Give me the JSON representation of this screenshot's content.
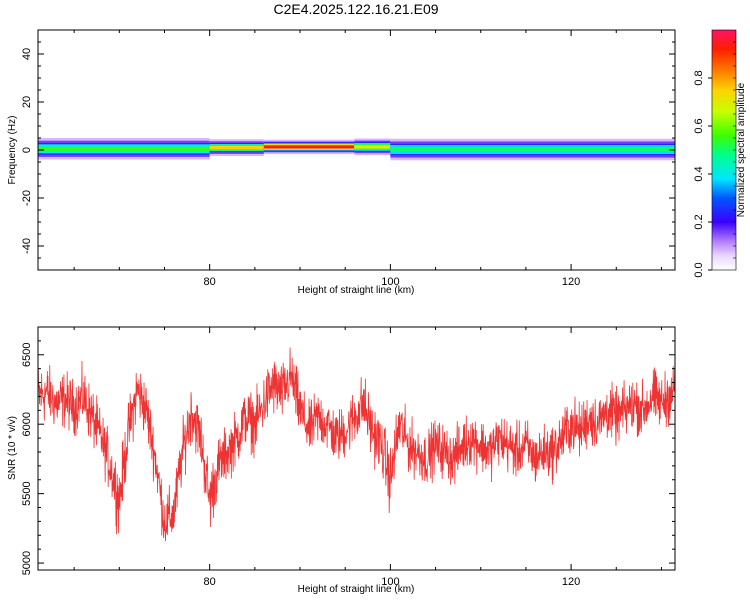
{
  "chart_data": [
    {
      "type": "heatmap",
      "title": "C2E4.2025.122.16.21.E09",
      "xlabel": "Height of straight line (km)",
      "ylabel": "Frequency (Hz)",
      "xlim": [
        61,
        131.5
      ],
      "ylim": [
        -50,
        50
      ],
      "xticks": [
        80,
        100,
        120
      ],
      "yticks": [
        40,
        20,
        0,
        -20,
        -40
      ],
      "xtick_labels": [
        "80",
        "100",
        "120"
      ],
      "ytick_labels": [
        "40",
        "20",
        "0",
        "-20",
        "-40"
      ],
      "colorbar": {
        "label": "Normalized spectral amplitude",
        "range": [
          0,
          1
        ],
        "ticks": [
          0.0,
          0.2,
          0.4,
          0.6,
          0.8
        ],
        "tick_labels": [
          "0.0",
          "0.2",
          "0.4",
          "0.6",
          "0.8"
        ]
      },
      "band": {
        "segments": [
          {
            "x_start": 61,
            "x_end": 80,
            "center_hz": 0.5,
            "core_halfwidth_hz": 1.5,
            "halo_halfwidth_hz": 4.5,
            "peak_amplitude": 0.55
          },
          {
            "x_start": 80,
            "x_end": 86,
            "center_hz": 1.0,
            "core_halfwidth_hz": 1.2,
            "halo_halfwidth_hz": 3.5,
            "peak_amplitude": 0.75
          },
          {
            "x_start": 86,
            "x_end": 96,
            "center_hz": 1.3,
            "core_halfwidth_hz": 1.2,
            "halo_halfwidth_hz": 3.0,
            "peak_amplitude": 0.95
          },
          {
            "x_start": 96,
            "x_end": 100,
            "center_hz": 1.3,
            "core_halfwidth_hz": 1.3,
            "halo_halfwidth_hz": 3.5,
            "peak_amplitude": 0.7
          },
          {
            "x_start": 100,
            "x_end": 131.5,
            "center_hz": 0.2,
            "core_halfwidth_hz": 1.5,
            "halo_halfwidth_hz": 4.5,
            "peak_amplitude": 0.5
          }
        ]
      }
    },
    {
      "type": "line",
      "xlabel": "Height of straight line (km)",
      "ylabel": "SNR (10 * v/v)",
      "xlim": [
        61,
        131.5
      ],
      "ylim": [
        4950,
        6700
      ],
      "xticks": [
        80,
        100,
        120
      ],
      "yticks": [
        6500,
        6000,
        5500,
        5000
      ],
      "xtick_labels": [
        "80",
        "100",
        "120"
      ],
      "ytick_labels": [
        "6500",
        "6000",
        "5500",
        "5000"
      ],
      "series": [
        {
          "name": "SNR",
          "color": "#ee3333",
          "x": [
            61,
            62,
            63,
            64,
            65,
            66,
            67,
            68,
            69,
            70,
            71,
            72,
            73,
            74,
            75,
            76,
            77,
            78,
            79,
            80,
            81,
            82,
            83,
            84,
            85,
            86,
            87,
            88,
            89,
            90,
            91,
            92,
            93,
            94,
            95,
            96,
            97,
            98,
            99,
            100,
            101,
            102,
            103,
            104,
            105,
            106,
            107,
            108,
            109,
            110,
            111,
            112,
            113,
            114,
            115,
            116,
            117,
            118,
            119,
            120,
            121,
            122,
            123,
            124,
            125,
            126,
            127,
            128,
            129,
            130,
            131.5
          ],
          "mean": [
            6200,
            6230,
            6150,
            6180,
            6120,
            6200,
            6050,
            5900,
            5700,
            5450,
            5950,
            6250,
            6100,
            5750,
            5300,
            5350,
            5800,
            6100,
            5900,
            5450,
            5700,
            5800,
            5900,
            6050,
            6000,
            6150,
            6280,
            6220,
            6350,
            6100,
            5950,
            6050,
            6000,
            5900,
            5950,
            6050,
            6150,
            5950,
            5850,
            5600,
            6000,
            5850,
            5800,
            5750,
            5850,
            5800,
            5750,
            5850,
            5900,
            5850,
            5800,
            5900,
            5850,
            5800,
            5850,
            5750,
            5800,
            5800,
            5900,
            6000,
            5950,
            6050,
            6000,
            6100,
            6050,
            6100,
            6150,
            6100,
            6200,
            6150,
            6250
          ],
          "spread": [
            350,
            300,
            280,
            300,
            280,
            300,
            300,
            280,
            300,
            350,
            300,
            320,
            300,
            280,
            300,
            300,
            300,
            320,
            300,
            350,
            300,
            280,
            300,
            300,
            300,
            300,
            320,
            300,
            300,
            300,
            280,
            300,
            300,
            280,
            280,
            300,
            320,
            300,
            300,
            350,
            300,
            280,
            280,
            280,
            280,
            280,
            280,
            280,
            280,
            280,
            280,
            280,
            280,
            280,
            280,
            280,
            280,
            280,
            300,
            300,
            280,
            300,
            280,
            300,
            280,
            280,
            300,
            280,
            300,
            280,
            300
          ],
          "samples_per_km": 30
        }
      ]
    }
  ]
}
